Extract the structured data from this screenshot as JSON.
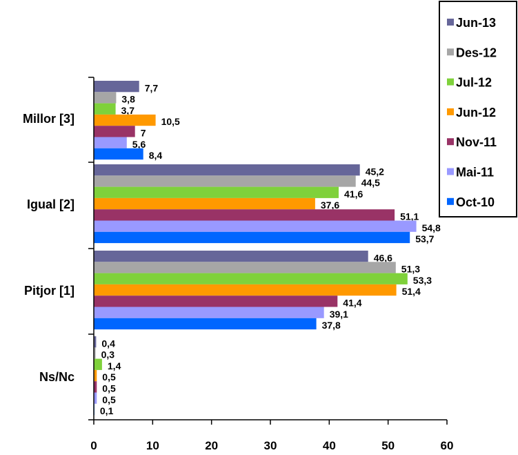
{
  "chart_data": {
    "type": "bar",
    "orientation": "horizontal",
    "title": "",
    "xlabel": "",
    "ylabel": "",
    "xlim": [
      0,
      60
    ],
    "x_ticks": [
      "0",
      "10",
      "20",
      "30",
      "40",
      "50",
      "60"
    ],
    "grid": false,
    "legend_position": "top-right",
    "categories": [
      "Millor [3]",
      "Igual [2]",
      "Pitjor [1]",
      "Ns/Nc"
    ],
    "series": [
      {
        "name": "Jun-13",
        "color": "#666699",
        "values": [
          7.7,
          45.2,
          46.6,
          0.4
        ],
        "labels": [
          "7,7",
          "45,2",
          "46,6",
          "0,4"
        ]
      },
      {
        "name": "Des-12",
        "color": "#A6A6A6",
        "values": [
          3.8,
          44.5,
          51.3,
          0.3
        ],
        "labels": [
          "3,8",
          "44,5",
          "51,3",
          "0,3"
        ]
      },
      {
        "name": "Jul-12",
        "color": "#7FD13B",
        "values": [
          3.7,
          41.6,
          53.3,
          1.4
        ],
        "labels": [
          "3,7",
          "41,6",
          "53,3",
          "1,4"
        ]
      },
      {
        "name": "Jun-12",
        "color": "#FF9900",
        "values": [
          10.5,
          37.6,
          51.4,
          0.5
        ],
        "labels": [
          "10,5",
          "37,6",
          "51,4",
          "0,5"
        ]
      },
      {
        "name": "Nov-11",
        "color": "#993366",
        "values": [
          7.0,
          51.1,
          41.4,
          0.5
        ],
        "labels": [
          "7",
          "51,1",
          "41,4",
          "0,5"
        ]
      },
      {
        "name": "Mai-11",
        "color": "#9999FF",
        "values": [
          5.6,
          54.8,
          39.1,
          0.5
        ],
        "labels": [
          "5,6",
          "54,8",
          "39,1",
          "0,5"
        ]
      },
      {
        "name": "Oct-10",
        "color": "#0066FF",
        "values": [
          8.4,
          53.7,
          37.8,
          0.1
        ],
        "labels": [
          "8,4",
          "53,7",
          "37,8",
          "0,1"
        ]
      }
    ]
  }
}
